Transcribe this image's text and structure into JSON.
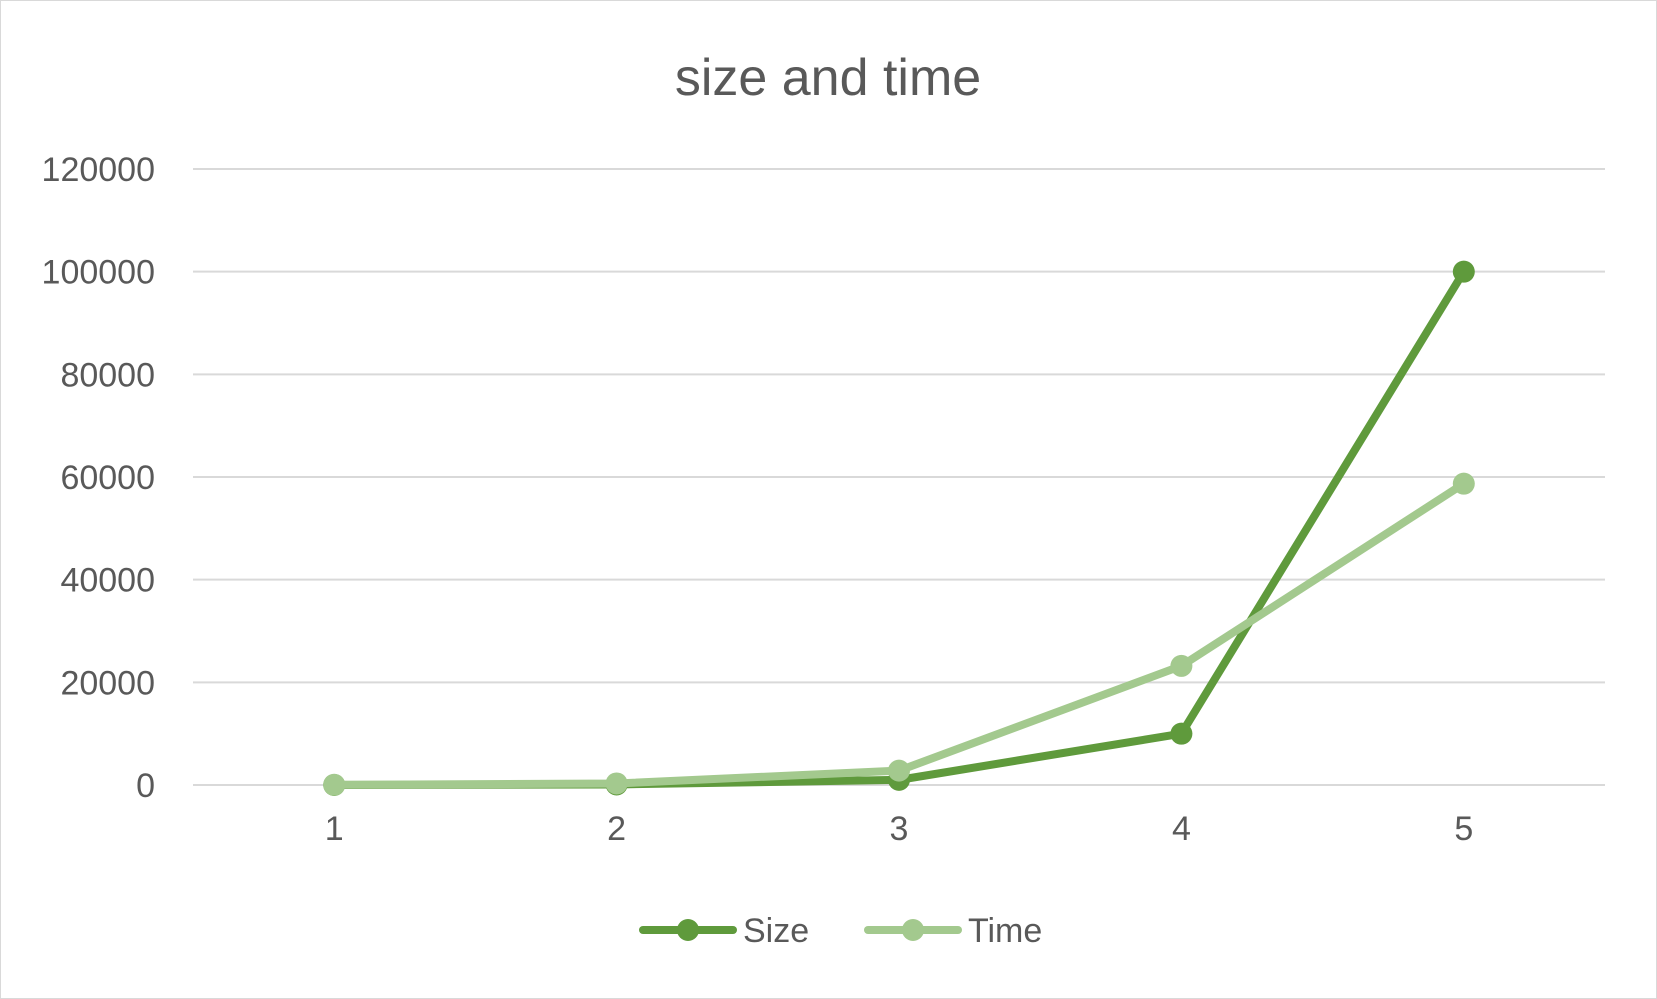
{
  "chart_data": {
    "type": "line",
    "title": "size and time",
    "xlabel": "",
    "ylabel": "",
    "categories": [
      "1",
      "2",
      "3",
      "4",
      "5"
    ],
    "ylim": [
      0,
      120000
    ],
    "yticks": [
      "0",
      "20000",
      "40000",
      "60000",
      "80000",
      "100000",
      "120000"
    ],
    "grid": true,
    "legend_position": "bottom",
    "series": [
      {
        "name": "Size",
        "values": [
          10,
          100,
          1000,
          10000,
          100000
        ],
        "color": "#5f9a3c"
      },
      {
        "name": "Time",
        "values": [
          40,
          300,
          2800,
          23200,
          58700
        ],
        "color": "#a3c98e"
      }
    ]
  }
}
